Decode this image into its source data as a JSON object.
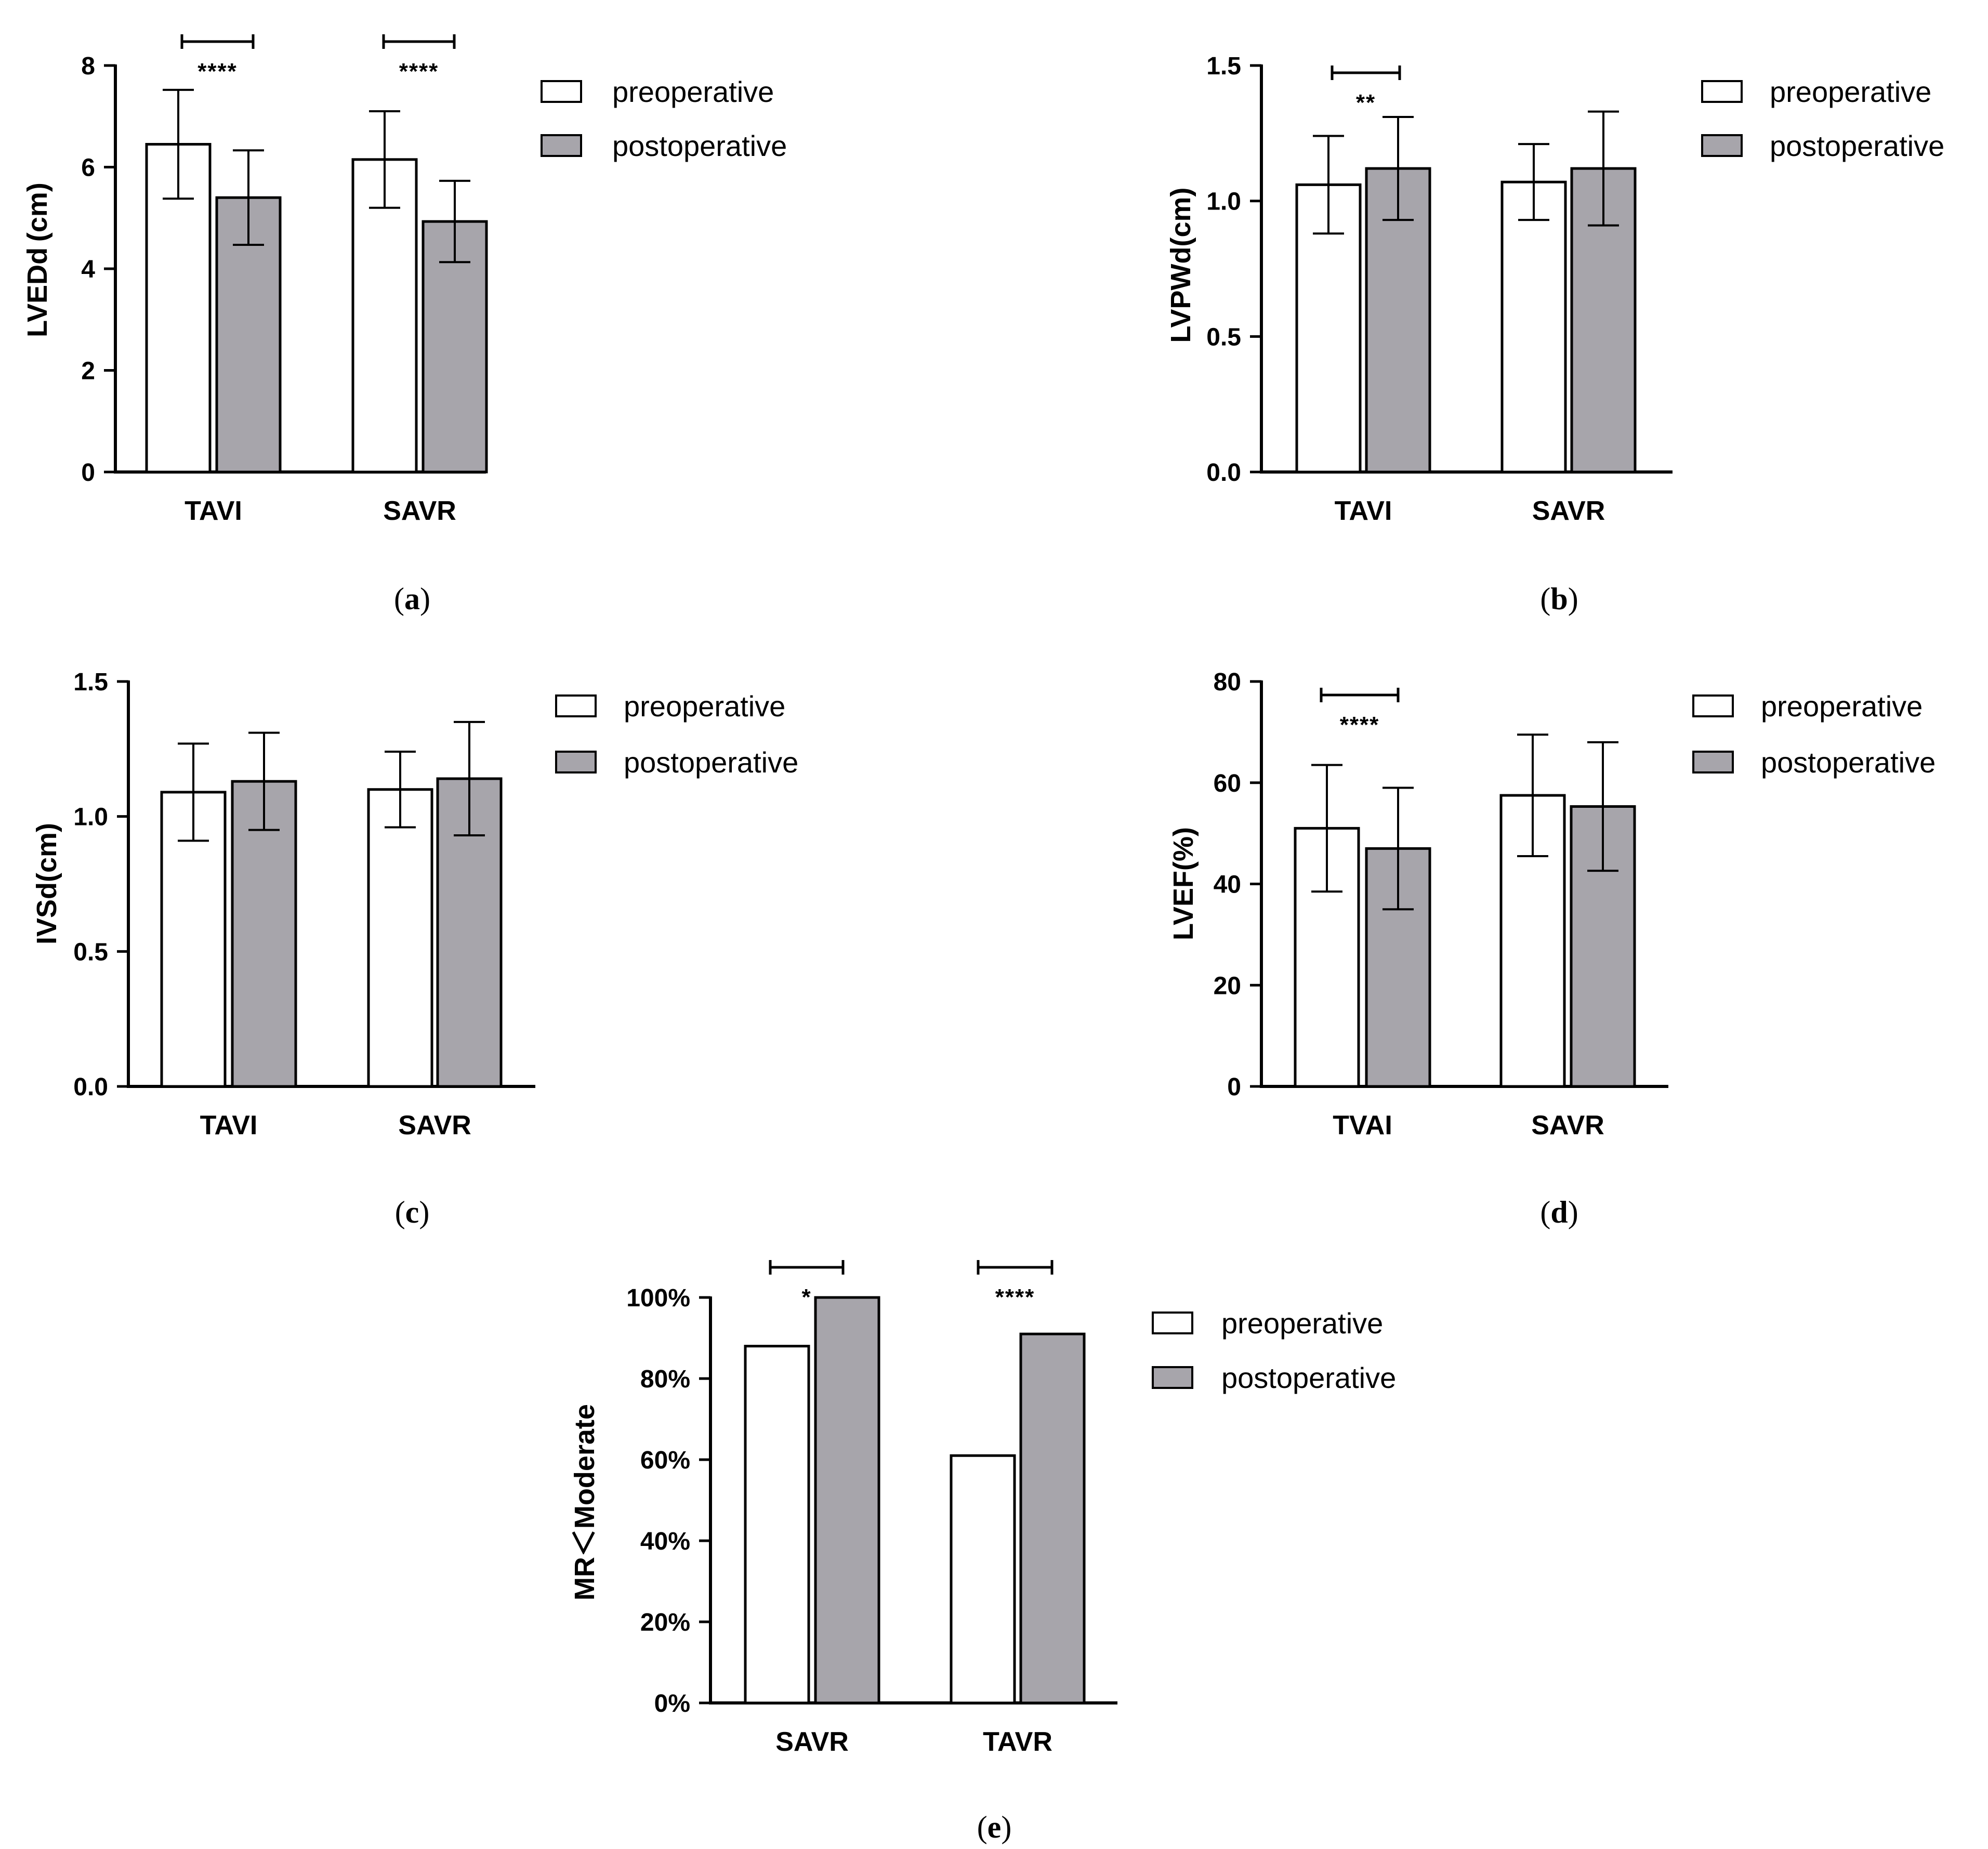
{
  "figure": {
    "legend": {
      "preoperative": "preoperative",
      "postoperative": "postoperative"
    },
    "colors": {
      "preoperative": "#ffffff",
      "postoperative": "#a7a5ab",
      "stroke": "#000000"
    }
  },
  "chart_data": [
    {
      "id": "a",
      "type": "bar",
      "caption_open": "(",
      "caption_letter": "a",
      "caption_close": ")",
      "ylabel": "LVEDd (cm)",
      "yticks": [
        "0",
        "2",
        "4",
        "6",
        "8"
      ],
      "ylim": [
        0,
        8
      ],
      "categories": [
        "TAVI",
        "SAVR"
      ],
      "series": [
        {
          "name": "preoperative",
          "values": [
            6.45,
            6.15
          ],
          "errors": [
            1.07,
            0.95
          ]
        },
        {
          "name": "postoperative",
          "values": [
            5.4,
            4.93
          ],
          "errors": [
            0.93,
            0.8
          ]
        }
      ],
      "significance": [
        {
          "category": 0,
          "label": "****"
        },
        {
          "category": 1,
          "label": "****"
        }
      ]
    },
    {
      "id": "b",
      "type": "bar",
      "caption_open": "(",
      "caption_letter": "b",
      "caption_close": ")",
      "ylabel": "LVPWd(cm)",
      "yticks": [
        "0.0",
        "0.5",
        "1.0",
        "1.5"
      ],
      "ylim": [
        0,
        1.5
      ],
      "categories": [
        "TAVI",
        "SAVR"
      ],
      "series": [
        {
          "name": "preoperative",
          "values": [
            1.06,
            1.07
          ],
          "errors": [
            0.18,
            0.14
          ]
        },
        {
          "name": "postoperative",
          "values": [
            1.12,
            1.12
          ],
          "errors": [
            0.19,
            0.21
          ]
        }
      ],
      "significance": [
        {
          "category": 0,
          "label": "**"
        }
      ]
    },
    {
      "id": "c",
      "type": "bar",
      "caption_open": "(",
      "caption_letter": "c",
      "caption_close": ")",
      "ylabel": "IVSd(cm)",
      "yticks": [
        "0.0",
        "0.5",
        "1.0",
        "1.5"
      ],
      "ylim": [
        0,
        1.5
      ],
      "categories": [
        "TAVI",
        "SAVR"
      ],
      "series": [
        {
          "name": "preoperative",
          "values": [
            1.09,
            1.1
          ],
          "errors": [
            0.18,
            0.14
          ]
        },
        {
          "name": "postoperative",
          "values": [
            1.13,
            1.14
          ],
          "errors": [
            0.18,
            0.21
          ]
        }
      ],
      "significance": []
    },
    {
      "id": "d",
      "type": "bar",
      "caption_open": "(",
      "caption_letter": "d",
      "caption_close": ")",
      "ylabel": "LVEF(%)",
      "yticks": [
        "0",
        "20",
        "40",
        "60",
        "80"
      ],
      "ylim": [
        0,
        80
      ],
      "categories": [
        "TVAI",
        "SAVR"
      ],
      "series": [
        {
          "name": "preoperative",
          "values": [
            51,
            57.5
          ],
          "errors": [
            12.5,
            12
          ]
        },
        {
          "name": "postoperative",
          "values": [
            47,
            55.3
          ],
          "errors": [
            12,
            12.7
          ]
        }
      ],
      "significance": [
        {
          "category": 0,
          "label": "****"
        }
      ]
    },
    {
      "id": "e",
      "type": "bar",
      "caption_open": "(",
      "caption_letter": "e",
      "caption_close": ")",
      "ylabel": "MR＜Moderate",
      "yticks": [
        "0%",
        "20%",
        "40%",
        "60%",
        "80%",
        "100%"
      ],
      "ylim": [
        0,
        100
      ],
      "categories": [
        "SAVR",
        "TAVR"
      ],
      "series": [
        {
          "name": "preoperative",
          "values": [
            88,
            61
          ],
          "errors": null
        },
        {
          "name": "postoperative",
          "values": [
            100,
            91
          ],
          "errors": null
        }
      ],
      "significance": [
        {
          "category": 0,
          "label": "*"
        },
        {
          "category": 1,
          "label": "****"
        }
      ]
    }
  ]
}
